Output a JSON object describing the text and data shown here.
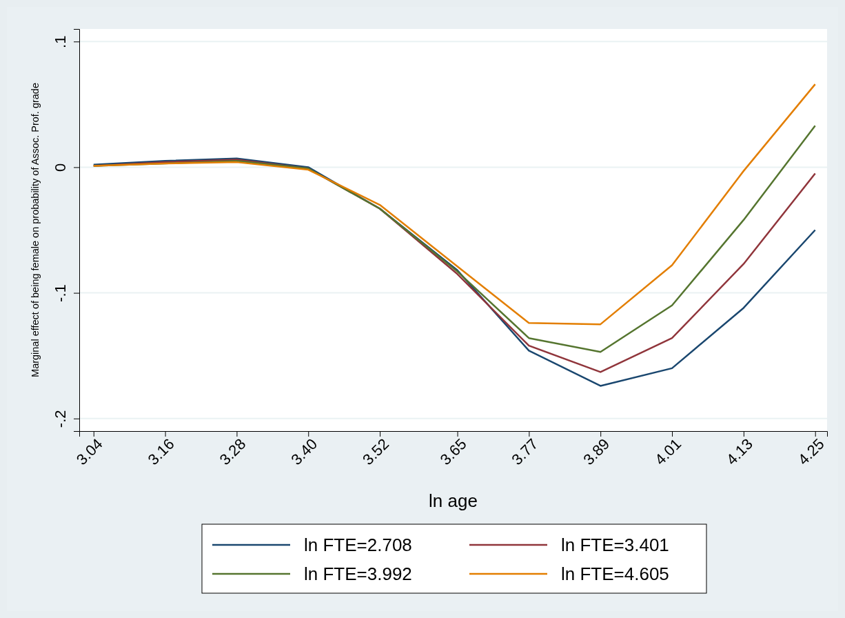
{
  "chart_data": {
    "type": "line",
    "xlabel": "ln age",
    "ylabel": "Marginal effect of being female on probability of Assoc. Prof. grade",
    "x": [
      3.04,
      3.16,
      3.28,
      3.4,
      3.52,
      3.65,
      3.77,
      3.89,
      4.01,
      4.13,
      4.25
    ],
    "series": [
      {
        "name": "ln FTE=2.708",
        "color": "#1a476f",
        "values": [
          0.002,
          0.005,
          0.007,
          0,
          -0.033,
          -0.082,
          -0.146,
          -0.174,
          -0.16,
          -0.112,
          -0.05
        ]
      },
      {
        "name": "ln FTE=3.401",
        "color": "#90353b",
        "values": [
          0.001,
          0.004,
          0.006,
          -0.001,
          -0.033,
          -0.085,
          -0.142,
          -0.163,
          -0.136,
          -0.077,
          -0.005
        ]
      },
      {
        "name": "ln FTE=3.992",
        "color": "#55752f",
        "values": [
          0.001,
          0.003,
          0.005,
          -0.001,
          -0.033,
          -0.083,
          -0.136,
          -0.147,
          -0.11,
          -0.042,
          0.033
        ]
      },
      {
        "name": "ln FTE=4.605",
        "color": "#e37e00",
        "values": [
          0.001,
          0.003,
          0.004,
          -0.002,
          -0.03,
          -0.079,
          -0.124,
          -0.125,
          -0.078,
          -0.003,
          0.066
        ]
      }
    ],
    "xlim": [
      3.016,
      4.27
    ],
    "xticks": [
      3.04,
      3.16,
      3.28,
      {
        "value": 3.4,
        "label": "3.40"
      },
      3.52,
      3.65,
      3.77,
      3.89,
      4.01,
      4.13,
      4.25
    ],
    "ylim": [
      -0.21,
      0.11
    ],
    "yticks": [
      {
        "value": -0.2,
        "label": "-.2"
      },
      {
        "value": -0.1,
        "label": "-.1"
      },
      0,
      {
        "value": 0.1,
        "label": ".1"
      }
    ],
    "grid": "y",
    "legend": "bottom",
    "marker": "none",
    "line_style": "solid"
  }
}
